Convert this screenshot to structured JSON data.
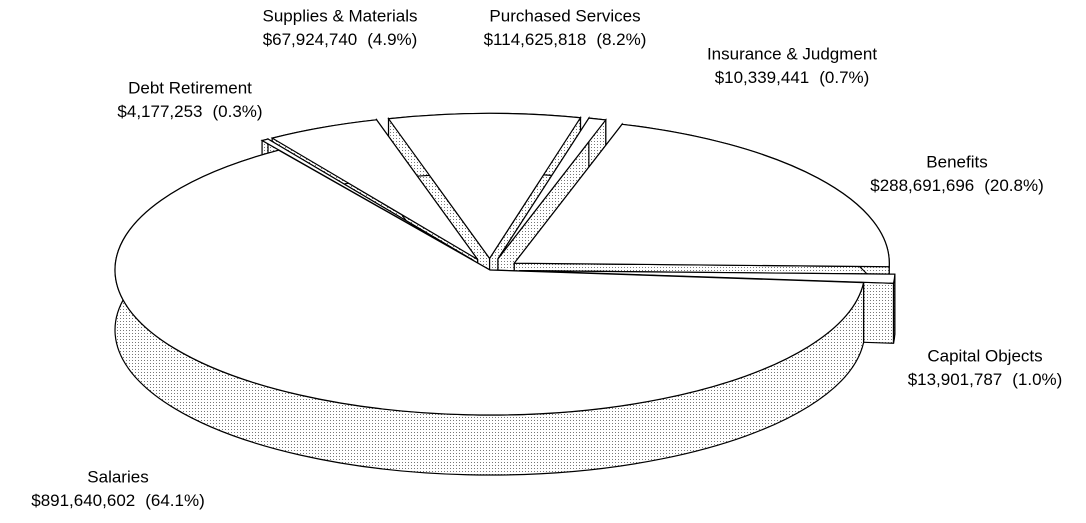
{
  "chart_data": {
    "type": "pie",
    "categories": [
      "Salaries",
      "Debt Retirement",
      "Supplies & Materials",
      "Purchased Services",
      "Insurance & Judgment",
      "Benefits",
      "Capital Objects"
    ],
    "values": [
      891640602,
      4177253,
      67924740,
      114625818,
      10339441,
      288691696,
      13901787
    ],
    "value_labels": [
      "$891,640,602",
      "$4,177,253",
      "$67,924,740",
      "$114,625,818",
      "$10,339,441",
      "$288,691,696",
      "$13,901,787"
    ],
    "percentages": [
      64.1,
      0.3,
      4.9,
      8.2,
      0.7,
      20.8,
      1.0
    ],
    "percentage_labels": [
      "(64.1%)",
      "(0.3%)",
      "(4.9%)",
      "(8.2%)",
      "(0.7%)",
      "(20.8%)",
      "(1.0%)"
    ],
    "color": "#ffffff"
  }
}
